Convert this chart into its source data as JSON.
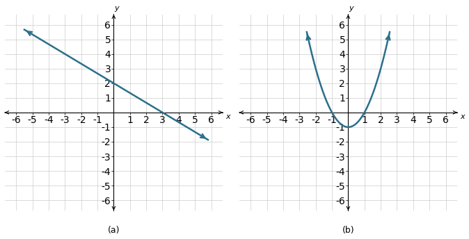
{
  "xlim": [
    -6.7,
    6.7
  ],
  "ylim": [
    -6.7,
    6.7
  ],
  "xticks": [
    -6,
    -5,
    -4,
    -3,
    -2,
    -1,
    1,
    2,
    3,
    4,
    5,
    6
  ],
  "yticks": [
    -6,
    -5,
    -4,
    -3,
    -2,
    -1,
    1,
    2,
    3,
    4,
    5,
    6
  ],
  "xlabel": "x",
  "ylabel": "y",
  "label_a": "(a)",
  "label_b": "(b)",
  "line_color": "#2b6f8a",
  "parabola_color": "#2b6f8a",
  "grid_color": "#cccccc",
  "axis_color": "#000000",
  "background_color": "#ffffff",
  "line_width": 1.8,
  "line_x_start": -5.5,
  "line_x_end": 5.8,
  "par_x_start": -2.55,
  "par_x_end": 2.55
}
